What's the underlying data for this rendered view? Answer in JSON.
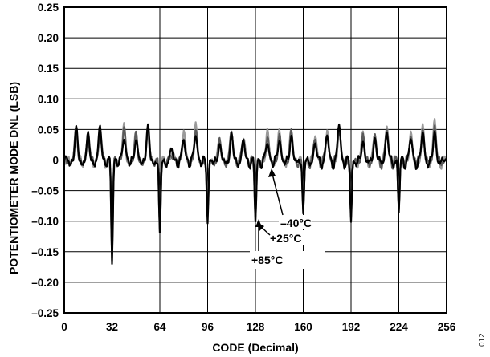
{
  "chart_data": {
    "type": "line",
    "xlabel": "CODE (Decimal)",
    "ylabel": "POTENTIOMETER MODE DNL (LSB)",
    "xlim": [
      0,
      256
    ],
    "ylim": [
      -0.25,
      0.25
    ],
    "x_ticks": [
      0,
      32,
      64,
      96,
      128,
      160,
      192,
      224,
      256
    ],
    "y_ticks": [
      0.25,
      0.2,
      0.15,
      0.1,
      0.05,
      0,
      -0.05,
      -0.1,
      -0.15,
      -0.2,
      -0.25
    ],
    "y_tick_labels": [
      "0.25",
      "0.20",
      "0.15",
      "0.10",
      "0.05",
      "0",
      "–0.05",
      "–0.10",
      "–0.15",
      "–0.20",
      "–0.25"
    ],
    "grid": true,
    "series": [
      {
        "name": "–40°C",
        "color": "#000000",
        "spikes": [
          {
            "code": 8,
            "dnl": 0.05
          },
          {
            "code": 16,
            "dnl": 0.04
          },
          {
            "code": 24,
            "dnl": 0.055
          },
          {
            "code": 32,
            "dnl": -0.165
          },
          {
            "code": 40,
            "dnl": 0.04
          },
          {
            "code": 48,
            "dnl": 0.035
          },
          {
            "code": 56,
            "dnl": 0.055
          },
          {
            "code": 64,
            "dnl": -0.125
          },
          {
            "code": 72,
            "dnl": 0.015
          },
          {
            "code": 80,
            "dnl": 0.035
          },
          {
            "code": 88,
            "dnl": 0.045
          },
          {
            "code": 96,
            "dnl": -0.1
          },
          {
            "code": 104,
            "dnl": 0.025
          },
          {
            "code": 112,
            "dnl": 0.04
          },
          {
            "code": 120,
            "dnl": 0.03
          },
          {
            "code": 128,
            "dnl": -0.1
          },
          {
            "code": 136,
            "dnl": 0.03
          },
          {
            "code": 144,
            "dnl": 0.035
          },
          {
            "code": 152,
            "dnl": 0.04
          },
          {
            "code": 160,
            "dnl": -0.09
          },
          {
            "code": 168,
            "dnl": 0.025
          },
          {
            "code": 176,
            "dnl": 0.04
          },
          {
            "code": 184,
            "dnl": 0.06
          },
          {
            "code": 192,
            "dnl": -0.1
          },
          {
            "code": 200,
            "dnl": 0.03
          },
          {
            "code": 208,
            "dnl": 0.035
          },
          {
            "code": 216,
            "dnl": 0.045
          },
          {
            "code": 224,
            "dnl": -0.085
          },
          {
            "code": 232,
            "dnl": 0.035
          },
          {
            "code": 240,
            "dnl": 0.045
          },
          {
            "code": 248,
            "dnl": 0.045
          }
        ]
      },
      {
        "name": "+25°C",
        "color": "#5a5a5a",
        "spikes": [
          {
            "code": 8,
            "dnl": 0.052
          },
          {
            "code": 16,
            "dnl": 0.038
          },
          {
            "code": 24,
            "dnl": 0.05
          },
          {
            "code": 32,
            "dnl": -0.16
          },
          {
            "code": 40,
            "dnl": 0.052
          },
          {
            "code": 48,
            "dnl": 0.04
          },
          {
            "code": 56,
            "dnl": 0.05
          },
          {
            "code": 64,
            "dnl": -0.118
          },
          {
            "code": 72,
            "dnl": 0.01
          },
          {
            "code": 80,
            "dnl": 0.04
          },
          {
            "code": 88,
            "dnl": 0.05
          },
          {
            "code": 96,
            "dnl": -0.095
          },
          {
            "code": 104,
            "dnl": 0.03
          },
          {
            "code": 112,
            "dnl": 0.045
          },
          {
            "code": 120,
            "dnl": 0.035
          },
          {
            "code": 128,
            "dnl": -0.095
          },
          {
            "code": 136,
            "dnl": 0.04
          },
          {
            "code": 144,
            "dnl": 0.04
          },
          {
            "code": 152,
            "dnl": 0.045
          },
          {
            "code": 160,
            "dnl": -0.085
          },
          {
            "code": 168,
            "dnl": 0.035
          },
          {
            "code": 176,
            "dnl": 0.045
          },
          {
            "code": 184,
            "dnl": 0.055
          },
          {
            "code": 192,
            "dnl": -0.095
          },
          {
            "code": 200,
            "dnl": 0.04
          },
          {
            "code": 208,
            "dnl": 0.04
          },
          {
            "code": 216,
            "dnl": 0.05
          },
          {
            "code": 224,
            "dnl": -0.08
          },
          {
            "code": 232,
            "dnl": 0.04
          },
          {
            "code": 240,
            "dnl": 0.05
          },
          {
            "code": 248,
            "dnl": 0.055
          }
        ]
      },
      {
        "name": "+85°C",
        "color": "#9a9a9a",
        "spikes": [
          {
            "code": 8,
            "dnl": 0.054
          },
          {
            "code": 16,
            "dnl": 0.035
          },
          {
            "code": 24,
            "dnl": 0.045
          },
          {
            "code": 32,
            "dnl": -0.155
          },
          {
            "code": 40,
            "dnl": 0.055
          },
          {
            "code": 48,
            "dnl": 0.045
          },
          {
            "code": 56,
            "dnl": 0.045
          },
          {
            "code": 64,
            "dnl": -0.11
          },
          {
            "code": 72,
            "dnl": 0.012
          },
          {
            "code": 80,
            "dnl": 0.045
          },
          {
            "code": 88,
            "dnl": 0.055
          },
          {
            "code": 96,
            "dnl": -0.09
          },
          {
            "code": 104,
            "dnl": 0.035
          },
          {
            "code": 112,
            "dnl": 0.05
          },
          {
            "code": 120,
            "dnl": 0.04
          },
          {
            "code": 128,
            "dnl": -0.09
          },
          {
            "code": 136,
            "dnl": 0.045
          },
          {
            "code": 144,
            "dnl": 0.045
          },
          {
            "code": 152,
            "dnl": 0.05
          },
          {
            "code": 160,
            "dnl": -0.08
          },
          {
            "code": 168,
            "dnl": 0.045
          },
          {
            "code": 176,
            "dnl": 0.05
          },
          {
            "code": 184,
            "dnl": 0.05
          },
          {
            "code": 192,
            "dnl": -0.09
          },
          {
            "code": 200,
            "dnl": 0.045
          },
          {
            "code": 208,
            "dnl": 0.045
          },
          {
            "code": 216,
            "dnl": 0.06
          },
          {
            "code": 224,
            "dnl": -0.075
          },
          {
            "code": 232,
            "dnl": 0.045
          },
          {
            "code": 240,
            "dnl": 0.055
          },
          {
            "code": 248,
            "dnl": 0.065
          }
        ]
      }
    ],
    "annotations": [
      "–40°C",
      "+25°C",
      "+85°C"
    ],
    "figure_number": "012"
  }
}
